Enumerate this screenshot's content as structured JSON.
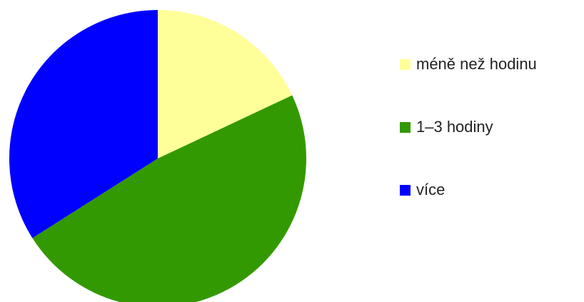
{
  "chart_data": {
    "type": "pie",
    "title": "",
    "start_angle_deg": 0,
    "direction": "clockwise",
    "legend_position": "right",
    "slices": [
      {
        "label": "méně než hodinu",
        "value": 18,
        "color": "#ffff99"
      },
      {
        "label": "1–3 hodiny",
        "value": 48,
        "color": "#339900"
      },
      {
        "label": "více",
        "value": 34,
        "color": "#0000ff"
      }
    ]
  }
}
